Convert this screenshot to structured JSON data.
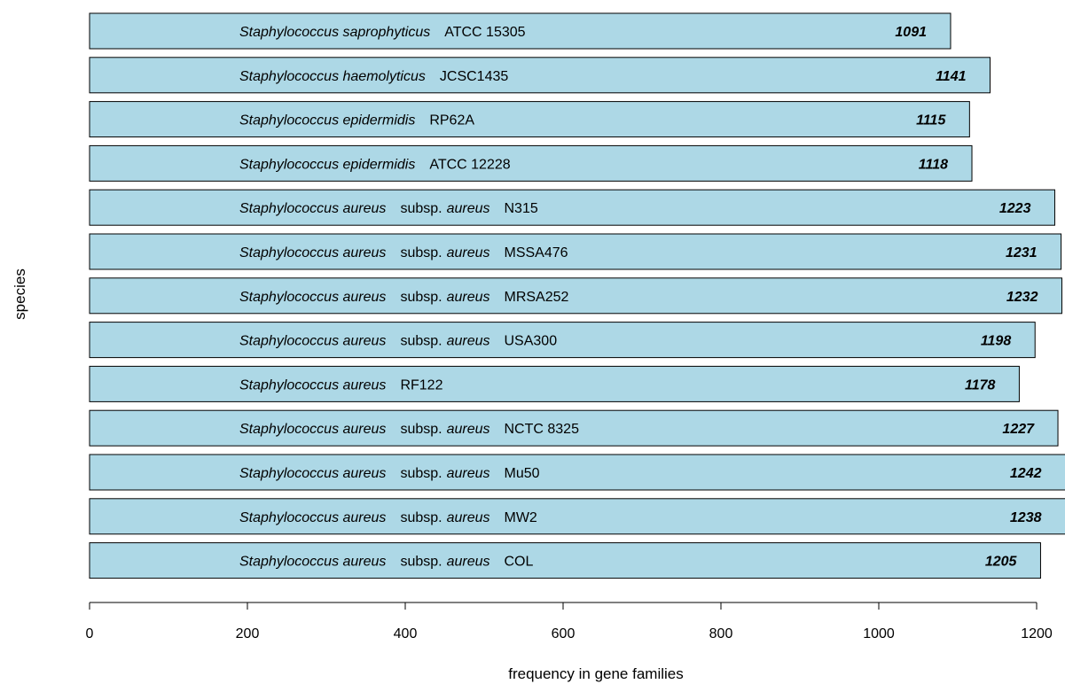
{
  "chart_data": {
    "type": "bar",
    "orientation": "horizontal",
    "xlabel": "frequency in gene families",
    "ylabel": "species",
    "xlim": [
      0,
      1200
    ],
    "xticks": [
      0,
      200,
      400,
      600,
      800,
      1000,
      1200
    ],
    "bar_color": "#add8e6",
    "bars": [
      {
        "genus": "Staphylococcus saprophyticus",
        "subsp_prefix": "",
        "subsp": "",
        "strain": "ATCC 15305",
        "value": 1091
      },
      {
        "genus": "Staphylococcus haemolyticus",
        "subsp_prefix": "",
        "subsp": "",
        "strain": "JCSC1435",
        "value": 1141
      },
      {
        "genus": "Staphylococcus epidermidis",
        "subsp_prefix": "",
        "subsp": "",
        "strain": "RP62A",
        "value": 1115
      },
      {
        "genus": "Staphylococcus epidermidis",
        "subsp_prefix": "",
        "subsp": "",
        "strain": "ATCC 12228",
        "value": 1118
      },
      {
        "genus": "Staphylococcus aureus",
        "subsp_prefix": "subsp.",
        "subsp": "aureus",
        "strain": "N315",
        "value": 1223
      },
      {
        "genus": "Staphylococcus aureus",
        "subsp_prefix": "subsp.",
        "subsp": "aureus",
        "strain": "MSSA476",
        "value": 1231
      },
      {
        "genus": "Staphylococcus aureus",
        "subsp_prefix": "subsp.",
        "subsp": "aureus",
        "strain": "MRSA252",
        "value": 1232
      },
      {
        "genus": "Staphylococcus aureus",
        "subsp_prefix": "subsp.",
        "subsp": "aureus",
        "strain": "USA300",
        "value": 1198
      },
      {
        "genus": "Staphylococcus aureus",
        "subsp_prefix": "",
        "subsp": "",
        "strain": "RF122",
        "value": 1178
      },
      {
        "genus": "Staphylococcus aureus",
        "subsp_prefix": "subsp.",
        "subsp": "aureus",
        "strain": "NCTC 8325",
        "value": 1227
      },
      {
        "genus": "Staphylococcus aureus",
        "subsp_prefix": "subsp.",
        "subsp": "aureus",
        "strain": "Mu50",
        "value": 1242
      },
      {
        "genus": "Staphylococcus aureus",
        "subsp_prefix": "subsp.",
        "subsp": "aureus",
        "strain": "MW2",
        "value": 1238
      },
      {
        "genus": "Staphylococcus aureus",
        "subsp_prefix": "subsp.",
        "subsp": "aureus",
        "strain": "COL",
        "value": 1205
      }
    ]
  }
}
